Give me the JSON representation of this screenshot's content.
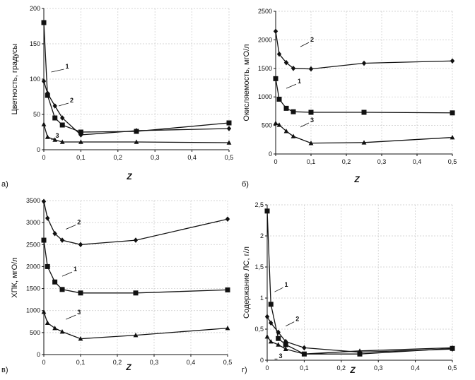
{
  "chart_data": [
    {
      "type": "line",
      "panel_label": "а)",
      "ylabel": "Цветность, градусы",
      "xlabel": "Z",
      "xlim": [
        0,
        0.5
      ],
      "ylim": [
        0,
        200
      ],
      "xticks": [
        "0",
        "0,1",
        "0,2",
        "0,3",
        "0,4",
        "0,5"
      ],
      "yticks": [
        "0",
        "50",
        "100",
        "150",
        "200"
      ],
      "series": [
        {
          "name": "1",
          "marker": "square",
          "x": [
            0,
            0.01,
            0.03,
            0.05,
            0.1,
            0.25,
            0.5
          ],
          "y": [
            180,
            77,
            45,
            35,
            25,
            26,
            38
          ]
        },
        {
          "name": "2",
          "marker": "diamond",
          "x": [
            0,
            0.01,
            0.03,
            0.05,
            0.1,
            0.25,
            0.5
          ],
          "y": [
            97,
            80,
            62,
            45,
            21,
            27,
            30
          ]
        },
        {
          "name": "3",
          "marker": "triangle",
          "x": [
            0,
            0.01,
            0.03,
            0.05,
            0.1,
            0.25,
            0.5
          ],
          "y": [
            36,
            18,
            14,
            11,
            11,
            11,
            10
          ]
        }
      ]
    },
    {
      "type": "line",
      "panel_label": "б)",
      "ylabel": "Окисляемость, мгО/л",
      "xlabel": "Z",
      "xlim": [
        0,
        0.5
      ],
      "ylim": [
        0,
        2500
      ],
      "xticks": [
        "0",
        "0,1",
        "0,2",
        "0,3",
        "0,4",
        "0,5"
      ],
      "yticks": [
        "0",
        "500",
        "1000",
        "1500",
        "2000",
        "2500"
      ],
      "series": [
        {
          "name": "1",
          "marker": "square",
          "x": [
            0,
            0.01,
            0.03,
            0.05,
            0.1,
            0.25,
            0.5
          ],
          "y": [
            1320,
            960,
            800,
            740,
            730,
            730,
            720
          ]
        },
        {
          "name": "2",
          "marker": "diamond",
          "x": [
            0,
            0.01,
            0.03,
            0.05,
            0.1,
            0.25,
            0.5
          ],
          "y": [
            2150,
            1750,
            1600,
            1500,
            1490,
            1590,
            1630
          ]
        },
        {
          "name": "3",
          "marker": "triangle",
          "x": [
            0,
            0.01,
            0.03,
            0.05,
            0.1,
            0.25,
            0.5
          ],
          "y": [
            540,
            510,
            400,
            310,
            190,
            200,
            290
          ]
        }
      ]
    },
    {
      "type": "line",
      "panel_label": "в)",
      "ylabel": "ХПК, мгО/л",
      "xlabel": "Z",
      "xlim": [
        0,
        0.5
      ],
      "ylim": [
        0,
        3500
      ],
      "xticks": [
        "0",
        "0,1",
        "0,2",
        "0,3",
        "0,4",
        "0,5"
      ],
      "yticks": [
        "0",
        "500",
        "1000",
        "1500",
        "2000",
        "2500",
        "3000",
        "3500"
      ],
      "series": [
        {
          "name": "1",
          "marker": "square",
          "x": [
            0,
            0.01,
            0.03,
            0.05,
            0.1,
            0.25,
            0.5
          ],
          "y": [
            2600,
            2000,
            1650,
            1480,
            1400,
            1400,
            1470
          ]
        },
        {
          "name": "2",
          "marker": "diamond",
          "x": [
            0,
            0.01,
            0.03,
            0.05,
            0.1,
            0.25,
            0.5
          ],
          "y": [
            3480,
            3100,
            2750,
            2600,
            2500,
            2600,
            3080
          ]
        },
        {
          "name": "3",
          "marker": "triangle",
          "x": [
            0,
            0.01,
            0.03,
            0.05,
            0.1,
            0.25,
            0.5
          ],
          "y": [
            970,
            720,
            600,
            520,
            360,
            440,
            600
          ]
        }
      ]
    },
    {
      "type": "line",
      "panel_label": "г)",
      "ylabel": "Содержание ЛС, г/л",
      "xlabel": "Z",
      "xlim": [
        0,
        0.5
      ],
      "ylim": [
        0,
        2.5
      ],
      "xticks": [
        "0",
        "0,1",
        "0,2",
        "0,3",
        "0,4",
        "0,5"
      ],
      "yticks": [
        "0",
        "0,5",
        "1",
        "1,5",
        "2",
        "2,5"
      ],
      "series": [
        {
          "name": "1",
          "marker": "square",
          "x": [
            0,
            0.01,
            0.03,
            0.05,
            0.1,
            0.25,
            0.5
          ],
          "y": [
            2.4,
            0.9,
            0.35,
            0.25,
            0.1,
            0.1,
            0.19
          ]
        },
        {
          "name": "2",
          "marker": "diamond",
          "x": [
            0,
            0.01,
            0.03,
            0.05,
            0.1,
            0.25,
            0.5
          ],
          "y": [
            0.7,
            0.6,
            0.45,
            0.3,
            0.2,
            0.13,
            0.18
          ]
        },
        {
          "name": "3",
          "marker": "triangle",
          "x": [
            0,
            0.01,
            0.03,
            0.05,
            0.1,
            0.25,
            0.5
          ],
          "y": [
            0.38,
            0.3,
            0.25,
            0.18,
            0.1,
            0.15,
            0.2
          ]
        }
      ]
    }
  ]
}
